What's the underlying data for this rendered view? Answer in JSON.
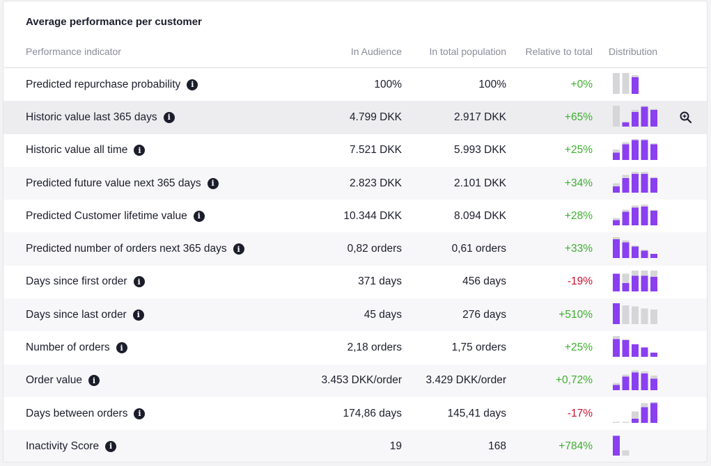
{
  "card": {
    "title": "Average performance per customer"
  },
  "columns": {
    "indicator": "Performance indicator",
    "in_audience": "In Audience",
    "in_total_population": "In total population",
    "relative_to_total": "Relative to total",
    "distribution": "Distribution"
  },
  "colors": {
    "audience_bar": "#8a3ff0",
    "population_bar": "#d6d6d9",
    "positive": "#3cae2e",
    "negative": "#c8102e"
  },
  "rows": [
    {
      "label": "Predicted repurchase probability",
      "in_audience": "100%",
      "in_total_population": "100%",
      "relative": "+0%",
      "trend": "positive",
      "distribution": {
        "population": [
          1,
          1,
          0.9
        ],
        "audience": [
          0,
          0,
          0.8
        ]
      }
    },
    {
      "label": "Historic value last 365 days",
      "in_audience": "4.799 DKK",
      "in_total_population": "2.917 DKK",
      "relative": "+65%",
      "trend": "positive",
      "distribution": {
        "population": [
          1,
          0.25,
          0.8,
          1,
          0.85
        ],
        "audience": [
          0,
          0.2,
          0.7,
          0.95,
          0.8
        ]
      }
    },
    {
      "label": "Historic value all time",
      "in_audience": "7.521 DKK",
      "in_total_population": "5.993 DKK",
      "relative": "+25%",
      "trend": "positive",
      "distribution": {
        "population": [
          0.5,
          0.85,
          1,
          1,
          0.8
        ],
        "audience": [
          0.35,
          0.75,
          0.95,
          0.95,
          0.75
        ]
      }
    },
    {
      "label": "Predicted future value next 365 days",
      "in_audience": "2.823 DKK",
      "in_total_population": "2.101 DKK",
      "relative": "+34%",
      "trend": "positive",
      "distribution": {
        "population": [
          0.45,
          0.85,
          1,
          1,
          0.75
        ],
        "audience": [
          0.3,
          0.7,
          0.9,
          0.9,
          0.7
        ]
      }
    },
    {
      "label": "Predicted Customer lifetime value",
      "in_audience": "10.344 DKK",
      "in_total_population": "8.094 DKK",
      "relative": "+28%",
      "trend": "positive",
      "distribution": {
        "population": [
          0.35,
          0.75,
          0.95,
          1,
          0.75
        ],
        "audience": [
          0.25,
          0.65,
          0.85,
          0.9,
          0.7
        ]
      }
    },
    {
      "label": "Predicted number of orders next 365 days",
      "in_audience": "0,82 orders",
      "in_total_population": "0,61 orders",
      "relative": "+33%",
      "trend": "positive",
      "distribution": {
        "population": [
          1,
          0.85,
          0.6,
          0.4,
          0.15
        ],
        "audience": [
          0.9,
          0.75,
          0.55,
          0.35,
          0.2
        ]
      }
    },
    {
      "label": "Days since first order",
      "in_audience": "371 days",
      "in_total_population": "456 days",
      "relative": "-19%",
      "trend": "negative",
      "distribution": {
        "population": [
          0.85,
          0.85,
          1,
          1,
          1
        ],
        "audience": [
          0.85,
          0.4,
          0.75,
          0.75,
          0.7
        ]
      }
    },
    {
      "label": "Days since last order",
      "in_audience": "45 days",
      "in_total_population": "276 days",
      "relative": "+510%",
      "trend": "positive",
      "distribution": {
        "population": [
          1,
          0.9,
          0.85,
          0.75,
          0.7
        ],
        "audience": [
          1,
          0,
          0,
          0,
          0
        ]
      }
    },
    {
      "label": "Number of orders",
      "in_audience": "2,18 orders",
      "in_total_population": "1,75 orders",
      "relative": "+25%",
      "trend": "positive",
      "distribution": {
        "population": [
          1,
          0.85,
          0.6,
          0.4,
          0.15
        ],
        "audience": [
          0.85,
          0.8,
          0.6,
          0.45,
          0.2
        ]
      }
    },
    {
      "label": "Order value",
      "in_audience": "3.453 DKK/order",
      "in_total_population": "3.429 DKK/order",
      "relative": "+0,72%",
      "trend": "positive",
      "distribution": {
        "population": [
          0.35,
          0.75,
          0.95,
          0.9,
          0.7
        ],
        "audience": [
          0.25,
          0.65,
          0.85,
          0.8,
          0.55
        ]
      }
    },
    {
      "label": "Days between orders",
      "in_audience": "174,86 days",
      "in_total_population": "145,41 days",
      "relative": "-17%",
      "trend": "negative",
      "distribution": {
        "population": [
          0.05,
          0.05,
          0.55,
          0.95,
          1
        ],
        "audience": [
          0,
          0,
          0.2,
          0.75,
          0.95
        ]
      }
    },
    {
      "label": "Inactivity Score",
      "in_audience": "19",
      "in_total_population": "168",
      "relative": "+784%",
      "trend": "positive",
      "distribution": {
        "population": [
          0.95,
          0.25
        ],
        "audience": [
          0.95,
          0
        ]
      }
    }
  ]
}
